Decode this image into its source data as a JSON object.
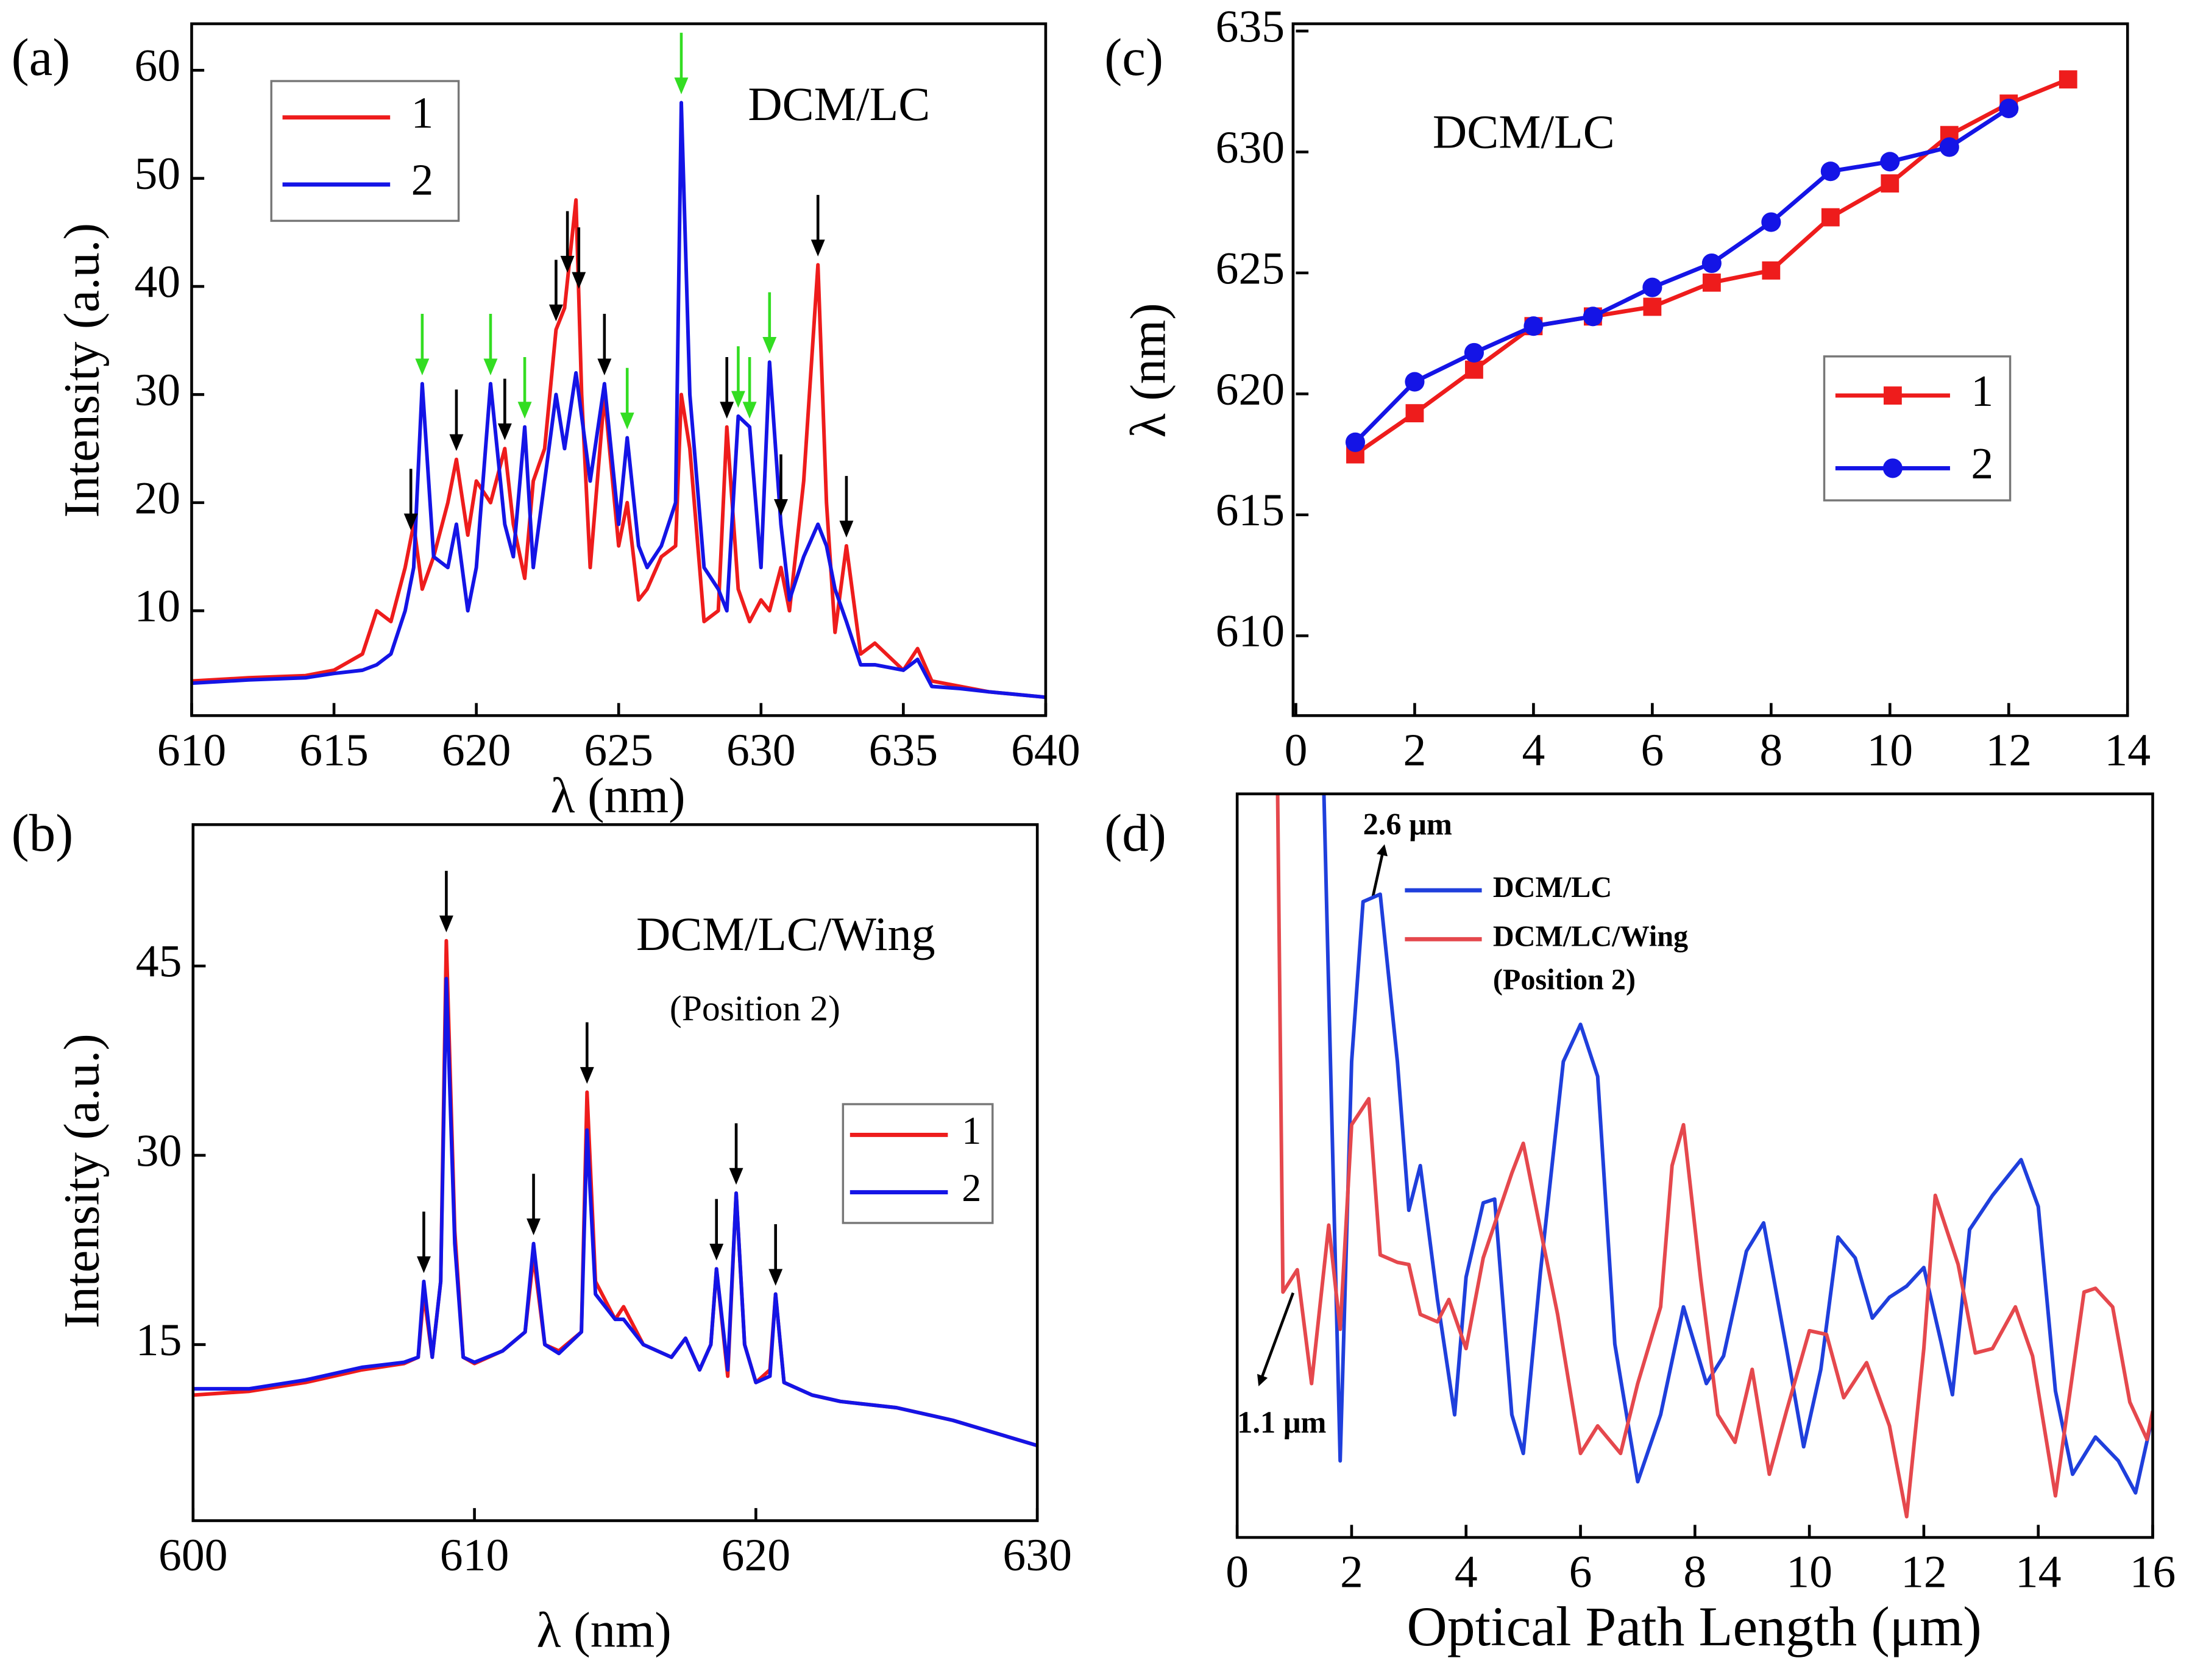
{
  "chart_data": [
    {
      "type": "line",
      "panel_label": "(a)",
      "xlabel": "λ (nm)",
      "ylabel": "Intensity (a.u.)",
      "annotations": [
        "DCM/LC"
      ],
      "xlim": [
        610,
        640
      ],
      "xticks": [
        610,
        615,
        620,
        625,
        630,
        635,
        640
      ],
      "ylim": [
        0.3,
        64.3
      ],
      "yticks": [
        10,
        20,
        30,
        40,
        50,
        60
      ],
      "legend": "upper left",
      "legend_frame": true,
      "series": [
        {
          "name": "1",
          "color": "#ee1c1c",
          "x": [
            610,
            612,
            614,
            615,
            616,
            616.5,
            617,
            617.5,
            617.8,
            618.1,
            618.5,
            619,
            619.3,
            619.7,
            620,
            620.5,
            621,
            621.3,
            621.7,
            622,
            622.4,
            622.8,
            623.1,
            623.5,
            623.7,
            624,
            624.5,
            625,
            625.3,
            625.7,
            626,
            626.5,
            627,
            627.2,
            627.5,
            628,
            628.5,
            628.8,
            629.2,
            629.6,
            630,
            630.3,
            630.7,
            631,
            631.5,
            632,
            632.3,
            632.6,
            633,
            633.5,
            634,
            635,
            635.5,
            636,
            637,
            638,
            640
          ],
          "values": [
            3.5,
            3.8,
            4,
            4.5,
            6,
            10,
            9,
            14,
            18,
            12,
            15,
            20,
            24,
            17,
            22,
            20,
            25,
            18,
            13,
            22,
            25,
            36,
            38,
            48,
            30,
            14,
            30,
            16,
            20,
            11,
            12,
            15,
            16,
            30,
            25,
            9,
            10,
            27,
            12,
            9,
            11,
            10,
            14,
            10,
            22,
            42,
            20,
            8,
            16,
            6,
            7,
            4.5,
            6.5,
            3.5,
            3,
            2.5,
            2
          ]
        },
        {
          "name": "2",
          "color": "#1414e6",
          "x": [
            610,
            612,
            614,
            615,
            616,
            616.5,
            617,
            617.5,
            617.8,
            618.1,
            618.5,
            619,
            619.3,
            619.7,
            620,
            620.5,
            621,
            621.3,
            621.7,
            622,
            622.4,
            622.8,
            623.1,
            623.5,
            623.7,
            624,
            624.5,
            625,
            625.3,
            625.7,
            626,
            626.5,
            627,
            627.2,
            627.5,
            628,
            628.5,
            628.8,
            629.2,
            629.6,
            630,
            630.3,
            630.7,
            631,
            631.5,
            632,
            632.3,
            632.6,
            633,
            633.5,
            634,
            635,
            635.5,
            636,
            637,
            638,
            640
          ],
          "values": [
            3.3,
            3.6,
            3.8,
            4.2,
            4.5,
            5,
            6,
            10,
            14,
            31,
            15,
            14,
            18,
            10,
            14,
            31,
            18,
            15,
            27,
            14,
            22,
            30,
            25,
            32,
            28,
            22,
            31,
            18,
            26,
            16,
            14,
            16,
            20,
            57,
            30,
            14,
            12,
            10,
            28,
            27,
            14,
            33,
            18,
            11,
            15,
            18,
            16,
            12,
            9,
            5,
            5,
            4.5,
            5.5,
            3,
            2.8,
            2.5,
            2
          ]
        }
      ],
      "arrows": [
        {
          "x": 617.7,
          "color": "#000000"
        },
        {
          "x": 618.1,
          "color": "#33dd22"
        },
        {
          "x": 619.3,
          "color": "#000000"
        },
        {
          "x": 620.5,
          "color": "#33dd22"
        },
        {
          "x": 621,
          "color": "#000000"
        },
        {
          "x": 621.7,
          "color": "#33dd22"
        },
        {
          "x": 622.8,
          "color": "#000000"
        },
        {
          "x": 623.2,
          "color": "#000000"
        },
        {
          "x": 623.6,
          "color": "#000000"
        },
        {
          "x": 624.5,
          "color": "#000000"
        },
        {
          "x": 625.3,
          "color": "#33dd22"
        },
        {
          "x": 627.2,
          "color": "#33dd22"
        },
        {
          "x": 628.8,
          "color": "#000000"
        },
        {
          "x": 629.2,
          "color": "#33dd22"
        },
        {
          "x": 629.6,
          "color": "#33dd22"
        },
        {
          "x": 630.3,
          "color": "#33dd22"
        },
        {
          "x": 630.7,
          "color": "#000000"
        },
        {
          "x": 632,
          "color": "#000000"
        },
        {
          "x": 633,
          "color": "#000000"
        }
      ]
    },
    {
      "type": "line",
      "panel_label": "(b)",
      "xlabel": "λ (nm)",
      "ylabel": "Intensity (a.u.)",
      "annotations": [
        "DCM/LC/Wing",
        "(Position 2)"
      ],
      "xlim": [
        600,
        630
      ],
      "xticks": [
        600,
        610,
        620,
        630
      ],
      "ylim": [
        1.05,
        56.2
      ],
      "yticks": [
        15,
        30,
        45
      ],
      "legend": "center right",
      "legend_frame": true,
      "series": [
        {
          "name": "1",
          "color": "#ee1c1c",
          "x": [
            600,
            602,
            604,
            606,
            607.5,
            608,
            608.2,
            608.5,
            608.8,
            609,
            609.3,
            609.6,
            610,
            611,
            611.8,
            612.1,
            612.5,
            613,
            613.8,
            614,
            614.3,
            615,
            615.3,
            616,
            617,
            617.5,
            618,
            618.4,
            618.6,
            619,
            619.3,
            619.6,
            620,
            620.5,
            620.7,
            621,
            622,
            623,
            625,
            627,
            630
          ],
          "values": [
            11,
            11.3,
            12,
            13,
            13.5,
            14,
            19,
            14,
            20,
            47,
            24,
            14,
            13.5,
            14.5,
            16,
            22,
            15,
            14.5,
            16,
            35,
            20,
            17,
            18,
            15,
            14,
            15.5,
            13,
            15,
            21,
            12.5,
            27,
            15,
            12,
            13,
            19,
            12,
            11,
            10.5,
            10,
            9,
            7
          ]
        },
        {
          "name": "2",
          "color": "#1414e6",
          "x": [
            600,
            602,
            604,
            606,
            607.5,
            608,
            608.2,
            608.5,
            608.8,
            609,
            609.3,
            609.6,
            610,
            611,
            611.8,
            612.1,
            612.5,
            613,
            613.8,
            614,
            614.3,
            615,
            615.3,
            616,
            617,
            617.5,
            618,
            618.4,
            618.6,
            619,
            619.3,
            619.6,
            620,
            620.5,
            620.7,
            621,
            622,
            623,
            625,
            627,
            630
          ],
          "values": [
            11.5,
            11.5,
            12.2,
            13.2,
            13.6,
            14,
            20,
            14,
            20,
            44,
            23,
            14,
            13.6,
            14.5,
            16,
            23,
            15,
            14.3,
            16,
            32,
            19,
            17,
            17,
            15,
            14,
            15.5,
            13,
            15,
            21,
            13,
            27,
            15,
            12,
            12.5,
            19,
            12,
            11,
            10.5,
            10,
            9,
            7
          ]
        }
      ],
      "arrows": [
        {
          "x": 608.2,
          "color": "#000000"
        },
        {
          "x": 609,
          "color": "#000000"
        },
        {
          "x": 612.1,
          "color": "#000000"
        },
        {
          "x": 614,
          "color": "#000000"
        },
        {
          "x": 618.6,
          "color": "#000000"
        },
        {
          "x": 619.3,
          "color": "#000000"
        },
        {
          "x": 620.7,
          "color": "#000000"
        }
      ]
    },
    {
      "type": "line",
      "panel_label": "(c)",
      "ylabel": "λ (nm)",
      "annotations": [
        "DCM/LC"
      ],
      "xlim": [
        0,
        14
      ],
      "xticks": [
        0,
        2,
        4,
        6,
        8,
        10,
        12,
        14
      ],
      "ylim": [
        606.7,
        635.3
      ],
      "yticks": [
        610,
        615,
        620,
        625,
        630,
        635
      ],
      "legend": "center right",
      "legend_frame": true,
      "series": [
        {
          "name": "1",
          "color": "#ee1c1c",
          "marker": "square",
          "x": [
            1,
            2,
            3,
            4,
            5,
            6,
            7,
            8,
            9,
            10,
            11,
            12,
            13
          ],
          "values": [
            617.5,
            619.2,
            621,
            622.8,
            623.2,
            623.6,
            624.6,
            625.1,
            627.3,
            628.7,
            630.7,
            632,
            633
          ]
        },
        {
          "name": "2",
          "color": "#1414e6",
          "marker": "circle",
          "x": [
            1,
            2,
            3,
            4,
            5,
            6,
            7,
            8,
            9,
            10,
            11,
            12
          ],
          "values": [
            618,
            620.5,
            621.7,
            622.8,
            623.2,
            624.4,
            625.4,
            627.1,
            629.2,
            629.6,
            630.2,
            631.8
          ]
        }
      ]
    },
    {
      "type": "line",
      "panel_label": "(d)",
      "xlabel": "Optical Path Length (μm)",
      "annotations": [
        "2.6 μm",
        "1.1 μm",
        "(Position 2)"
      ],
      "xlim": [
        0,
        16
      ],
      "xticks": [
        0,
        2,
        4,
        6,
        8,
        10,
        12,
        14,
        16
      ],
      "ylim": [
        0,
        100
      ],
      "legend": "upper center",
      "legend_frame": false,
      "series": [
        {
          "name": "DCM/LC",
          "color": "#1f3fdc",
          "x": [
            1.5,
            1.8,
            2.0,
            2.2,
            2.5,
            2.8,
            3.0,
            3.2,
            3.5,
            3.8,
            4.0,
            4.3,
            4.5,
            4.8,
            5.0,
            5.3,
            5.7,
            6.0,
            6.3,
            6.6,
            7.0,
            7.4,
            7.8,
            8.2,
            8.5,
            8.9,
            9.2,
            9.6,
            9.9,
            10.2,
            10.5,
            10.8,
            11.1,
            11.4,
            11.7,
            12.0,
            12.3,
            12.5,
            12.8,
            13.2,
            13.7,
            14.0,
            14.3,
            14.6,
            15.0,
            15.4,
            15.7,
            16.0
          ],
          "values": [
            105,
            10.3,
            64,
            85.5,
            86.5,
            64,
            44,
            50,
            32,
            16.5,
            35,
            45,
            45.5,
            16.5,
            11.3,
            35.7,
            64,
            69,
            62,
            26,
            7.5,
            16.5,
            31,
            20.7,
            24.4,
            38.5,
            42.3,
            25.4,
            12.2,
            22.6,
            40.4,
            37.6,
            29.5,
            32.3,
            33.8,
            36.3,
            26.3,
            19.2,
            41.4,
            46,
            50.8,
            44.5,
            19.7,
            8.5,
            13.5,
            10.3,
            6,
            16.4
          ]
        },
        {
          "name": "DCM/LC/Wing",
          "color": "#e5484d",
          "x": [
            0.7,
            0.8,
            1.05,
            1.3,
            1.6,
            1.8,
            2.0,
            2.3,
            2.5,
            2.8,
            3.0,
            3.2,
            3.5,
            3.7,
            4.0,
            4.3,
            4.8,
            5.0,
            5.3,
            5.6,
            6.0,
            6.3,
            6.7,
            7.0,
            7.4,
            7.6,
            7.8,
            8.1,
            8.4,
            8.7,
            9.0,
            9.3,
            9.6,
            10.0,
            10.3,
            10.6,
            11.0,
            11.4,
            11.7,
            12.0,
            12.2,
            12.6,
            12.9,
            13.2,
            13.6,
            13.9,
            14.3,
            14.8,
            15.0,
            15.3,
            15.6,
            15.9,
            16.0
          ],
          "values": [
            105,
            33,
            36,
            20.7,
            42,
            28,
            55.5,
            59,
            38,
            37,
            36.7,
            30,
            29,
            32,
            25.4,
            37.6,
            49,
            53,
            41.4,
            30,
            11.3,
            15,
            11.3,
            20.7,
            31,
            50,
            55.5,
            34.8,
            16.5,
            12.8,
            22.6,
            8.5,
            17,
            27.8,
            27.3,
            18.8,
            23.5,
            15,
            2.8,
            25.4,
            46,
            36.7,
            24.8,
            25.4,
            31,
            24.4,
            5.6,
            33,
            33.5,
            31,
            18.2,
            13.2,
            17
          ]
        }
      ]
    }
  ]
}
